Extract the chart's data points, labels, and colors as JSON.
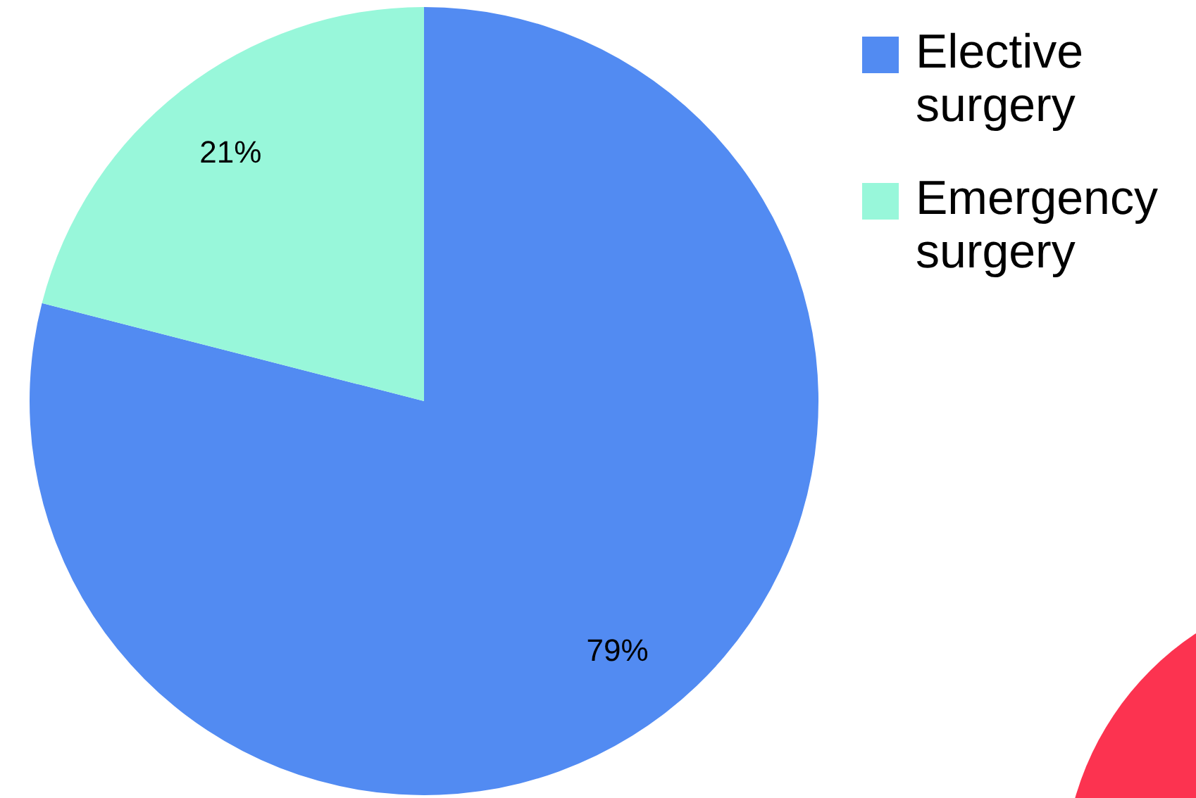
{
  "chart_data": {
    "type": "pie",
    "categories": [
      "Elective surgery",
      "Emergency surgery"
    ],
    "values": [
      79,
      21
    ],
    "colors": [
      "#528bf2",
      "#98f7da"
    ],
    "value_labels": [
      "79%",
      "21%"
    ],
    "legend": "top right"
  }
}
